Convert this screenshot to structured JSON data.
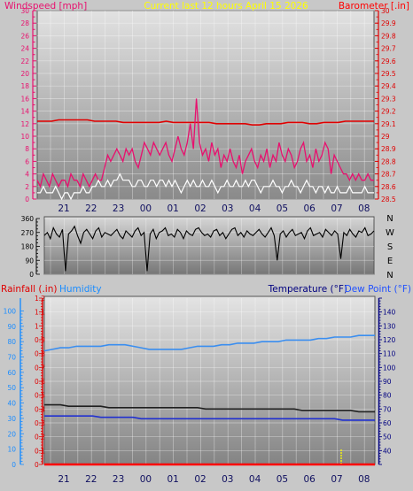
{
  "header": {
    "left_title": "Windspeed [mph]",
    "center_title": "Current last 12 hours April 15 2026",
    "right_title": "Barometer [.in]"
  },
  "bottom_header": {
    "rainfall_label": "Rainfall (.in)",
    "humidity_label": "Humidity",
    "temperature_label": "Temperature (°F)",
    "dewpoint_label": "Dew Point (°F)"
  },
  "colors": {
    "windspeed": "#e8106e",
    "gust": "#ffffff",
    "barometer": "#e00000",
    "direction": "#000000",
    "humidity": "#3a8ef0",
    "temperature": "#202020",
    "dewpoint": "#2030d0",
    "rainfall": "#ff0000",
    "left_title": "#e8106e",
    "center_title": "#ffff00",
    "right_title": "#ff0000",
    "rain_axis": "#e00000",
    "humidity_axis": "#1a8cff",
    "temp_axis": "#000080"
  },
  "chart_data": [
    {
      "type": "line",
      "name": "wind-barometer",
      "x_ticks": [
        "21",
        "22",
        "23",
        "00",
        "01",
        "02",
        "03",
        "04",
        "05",
        "06",
        "07",
        "08"
      ],
      "y_left_ticks": [
        "0",
        "2",
        "4",
        "6",
        "8",
        "10",
        "12",
        "14",
        "16",
        "18",
        "20",
        "22",
        "24",
        "26",
        "28",
        "30"
      ],
      "y_left_range": [
        0,
        30
      ],
      "y_right_ticks": [
        "28.5",
        "28.6",
        "28.7",
        "28.8",
        "28.9",
        "29",
        "29.1",
        "29.2",
        "29.3",
        "29.4",
        "29.5",
        "29.6",
        "29.7",
        "29.8",
        "29.9",
        "30"
      ],
      "y_right_range": [
        28.5,
        30
      ],
      "windspeed": [
        3,
        2,
        4,
        3,
        2,
        4,
        3,
        2,
        3,
        3,
        2,
        4,
        3,
        3,
        2,
        4,
        3,
        2,
        3,
        4,
        3,
        3,
        5,
        7,
        6,
        7,
        8,
        7,
        6,
        8,
        7,
        8,
        6,
        5,
        7,
        9,
        8,
        7,
        9,
        8,
        7,
        8,
        9,
        7,
        6,
        8,
        10,
        8,
        7,
        9,
        12,
        8,
        16,
        9,
        7,
        8,
        6,
        9,
        7,
        8,
        5,
        7,
        6,
        8,
        6,
        5,
        7,
        4,
        6,
        7,
        8,
        6,
        5,
        7,
        6,
        8,
        5,
        7,
        6,
        9,
        7,
        6,
        8,
        7,
        5,
        6,
        8,
        9,
        6,
        7,
        5,
        8,
        6,
        7,
        9,
        8,
        4,
        7,
        6,
        5,
        4,
        4,
        3,
        4,
        3,
        4,
        3,
        3,
        4,
        3,
        3
      ],
      "gust": [
        1,
        1,
        2,
        1,
        1,
        1,
        2,
        1,
        0,
        1,
        1,
        0,
        1,
        1,
        1,
        2,
        1,
        1,
        2,
        2,
        3,
        2,
        2,
        3,
        2,
        3,
        3,
        4,
        3,
        3,
        3,
        2,
        2,
        3,
        3,
        2,
        2,
        3,
        3,
        2,
        3,
        3,
        2,
        3,
        2,
        3,
        2,
        1,
        2,
        3,
        2,
        3,
        2,
        2,
        3,
        2,
        2,
        3,
        2,
        1,
        2,
        2,
        3,
        2,
        2,
        3,
        2,
        2,
        3,
        2,
        3,
        3,
        2,
        1,
        2,
        2,
        2,
        3,
        2,
        2,
        1,
        2,
        2,
        3,
        2,
        2,
        1,
        2,
        3,
        2,
        2,
        1,
        2,
        2,
        1,
        2,
        1,
        1,
        2,
        1,
        1,
        1,
        2,
        1,
        1,
        1,
        1,
        2,
        1,
        1,
        1
      ],
      "barometer": [
        29.12,
        29.12,
        29.12,
        29.13,
        29.13,
        29.13,
        29.13,
        29.13,
        29.12,
        29.12,
        29.12,
        29.12,
        29.11,
        29.11,
        29.11,
        29.11,
        29.11,
        29.11,
        29.12,
        29.11,
        29.11,
        29.11,
        29.11,
        29.11,
        29.11,
        29.1,
        29.1,
        29.1,
        29.1,
        29.1,
        29.09,
        29.09,
        29.1,
        29.1,
        29.1,
        29.11,
        29.11,
        29.11,
        29.1,
        29.1,
        29.11,
        29.11,
        29.11,
        29.12,
        29.12,
        29.12,
        29.12,
        29.12
      ]
    },
    {
      "type": "line",
      "name": "wind-direction",
      "x_ticks": [
        "21",
        "22",
        "23",
        "00",
        "01",
        "02",
        "03",
        "04",
        "05",
        "06",
        "07",
        "08"
      ],
      "y_ticks": [
        "0",
        "90",
        "180",
        "270",
        "360"
      ],
      "y_range": [
        0,
        360
      ],
      "compass_labels": [
        "N",
        "W",
        "S",
        "E",
        "N"
      ],
      "direction": [
        250,
        270,
        230,
        300,
        260,
        240,
        290,
        20,
        260,
        280,
        310,
        250,
        200,
        270,
        290,
        260,
        230,
        280,
        300,
        240,
        270,
        260,
        250,
        270,
        290,
        250,
        230,
        280,
        260,
        240,
        280,
        300,
        250,
        270,
        20,
        260,
        290,
        230,
        270,
        280,
        300,
        250,
        260,
        240,
        290,
        270,
        230,
        280,
        260,
        250,
        290,
        300,
        270,
        250,
        260,
        240,
        280,
        290,
        250,
        270,
        230,
        260,
        290,
        300,
        250,
        270,
        240,
        280,
        260,
        250,
        270,
        290,
        260,
        240,
        270,
        300,
        250,
        90,
        260,
        280,
        240,
        270,
        290,
        250,
        260,
        270,
        230,
        280,
        300,
        250,
        260,
        270,
        240,
        290,
        270,
        250,
        280,
        260,
        100,
        270,
        250,
        290,
        260,
        240,
        280,
        270,
        300,
        250,
        260,
        280
      ]
    },
    {
      "type": "line",
      "name": "rain-humidity-temperature",
      "x_ticks": [
        "21",
        "22",
        "23",
        "00",
        "01",
        "02",
        "03",
        "04",
        "05",
        "06",
        "07",
        "08"
      ],
      "y_rain_ticks": [
        "0",
        "0.1",
        "0.2",
        "0.3",
        "0.4",
        "0.5",
        "0.6",
        "0.7",
        "0.8",
        "0.9",
        "1",
        "1.1",
        "1.2"
      ],
      "y_rain_range": [
        0,
        1.2
      ],
      "y_humidity_ticks": [
        "0",
        "10",
        "20",
        "30",
        "40",
        "50",
        "60",
        "70",
        "80",
        "90",
        "100"
      ],
      "y_humidity_range": [
        0,
        100
      ],
      "y_temp_ticks": [
        "40",
        "50",
        "60",
        "70",
        "80",
        "90",
        "100",
        "110",
        "120",
        "130",
        "140"
      ],
      "y_temp_range": [
        30,
        150
      ],
      "humidity": [
        74,
        75,
        76,
        76,
        77,
        77,
        77,
        77,
        78,
        78,
        78,
        77,
        76,
        75,
        75,
        75,
        75,
        75,
        76,
        77,
        77,
        77,
        78,
        78,
        79,
        79,
        79,
        80,
        80,
        80,
        81,
        81,
        81,
        81,
        82,
        82,
        83,
        83,
        83,
        84,
        84,
        84
      ],
      "temperature": [
        73,
        73,
        73,
        72,
        72,
        72,
        72,
        72,
        71,
        71,
        71,
        71,
        71,
        71,
        71,
        71,
        71,
        71,
        71,
        71,
        70,
        70,
        70,
        70,
        70,
        70,
        70,
        70,
        70,
        70,
        70,
        70,
        69,
        69,
        69,
        69,
        69,
        69,
        69,
        68,
        68,
        68
      ],
      "dewpoint": [
        65,
        65,
        65,
        65,
        65,
        65,
        65,
        64,
        64,
        64,
        64,
        64,
        63,
        63,
        63,
        63,
        63,
        63,
        63,
        63,
        63,
        63,
        63,
        63,
        63,
        63,
        63,
        63,
        63,
        63,
        63,
        63,
        63,
        63,
        63,
        63,
        63,
        62,
        62,
        62,
        62,
        62
      ],
      "rainfall": [
        0,
        0,
        0,
        0,
        0,
        0,
        0,
        0,
        0,
        0,
        0,
        0,
        0,
        0,
        0,
        0,
        0,
        0,
        0,
        0,
        0,
        0,
        0,
        0,
        0,
        0,
        0,
        0,
        0,
        0,
        0,
        0,
        0,
        0,
        0,
        0,
        0,
        0,
        0,
        0,
        0,
        0
      ]
    }
  ]
}
